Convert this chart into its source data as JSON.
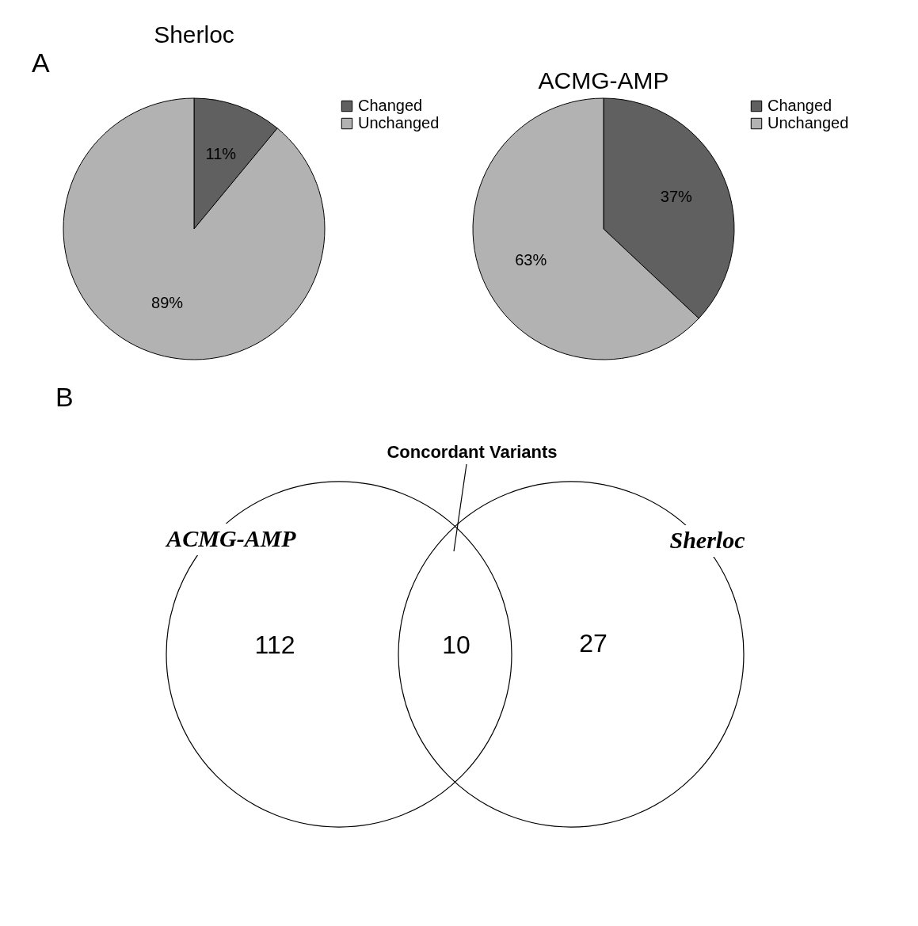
{
  "chart_data": [
    {
      "type": "pie",
      "title": "Sherloc",
      "categories": [
        "Changed",
        "Unchanged"
      ],
      "values": [
        11,
        89
      ],
      "colors": [
        "#606060",
        "#b2b2b2"
      ],
      "value_labels": [
        "11%",
        "89%"
      ],
      "legend": "right",
      "annotations": [
        "A"
      ]
    },
    {
      "type": "pie",
      "title": "ACMG-AMP",
      "categories": [
        "Changed",
        "Unchanged"
      ],
      "values": [
        37,
        63
      ],
      "colors": [
        "#606060",
        "#b2b2b2"
      ],
      "value_labels": [
        "37%",
        "63%"
      ],
      "legend": "right"
    },
    {
      "type": "other",
      "categories": [
        "ACMG-AMP",
        null,
        "Sherloc"
      ],
      "values": [
        112,
        10,
        27
      ],
      "data_labels": true,
      "annotations": [
        "B",
        "Concordant Variants"
      ]
    }
  ]
}
